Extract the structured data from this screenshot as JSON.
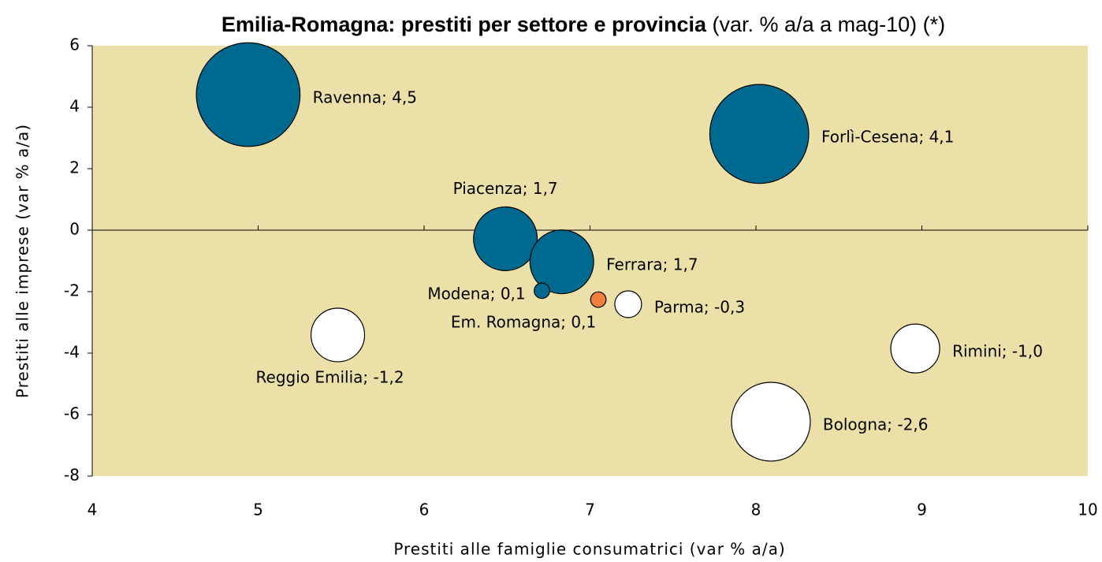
{
  "chart_data": {
    "type": "bubble",
    "title": "Emilia-Romagna: prestiti per settore e provincia",
    "subtitle": "(var. % a/a a mag-10) (*)",
    "x_label": "Prestiti alle famiglie consumatrici (var % a/a)",
    "y_label": "Prestiti alle imprese (var % a/a)",
    "labels": [
      "Ravenna; 4,5",
      "Forlì-Cesena; 4,1",
      "Piacenza; 1,7",
      "Ferrara; 1,7",
      "Modena; 0,1",
      "Em. Romagna; 0,1",
      "Parma; -0,3",
      "Reggio Emilia; -1,2",
      "Rimini; -1,0",
      "Bologna; -2,6"
    ],
    "x": [
      4.94,
      8.02,
      6.49,
      6.83,
      6.71,
      7.05,
      7.23,
      5.48,
      8.96,
      8.09
    ],
    "y": [
      4.41,
      3.13,
      -0.28,
      -1.03,
      -1.97,
      -2.26,
      -2.41,
      -3.41,
      -3.85,
      -6.23
    ],
    "sizes": [
      4.5,
      4.1,
      1.7,
      1.7,
      0.1,
      0.1,
      -0.3,
      -1.2,
      -1.0,
      -2.6
    ],
    "colors": [
      "#006990",
      "#006990",
      "#006990",
      "#006990",
      "#006990",
      "#f07f3c",
      "#ffffff",
      "#ffffff",
      "#ffffff",
      "#ffffff"
    ],
    "plot_background": "#ebe0a8",
    "xlim": [
      4,
      10
    ],
    "xticks": [
      4,
      5,
      6,
      7,
      8,
      9,
      10
    ],
    "ylim": [
      -8,
      6
    ],
    "yticks": [
      -8,
      -6,
      -4,
      -2,
      0,
      2,
      4,
      6
    ]
  }
}
